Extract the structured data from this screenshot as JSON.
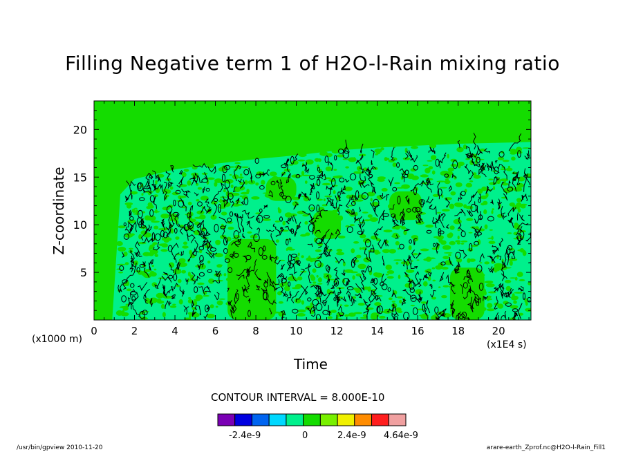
{
  "chart_data": {
    "type": "heatmap",
    "title": "Filling Negative term 1 of H2O-l-Rain mixing ratio",
    "xlabel": "Time",
    "ylabel": "Z-coordinate",
    "x_unit_note": "(x1000 m)",
    "x_scale_note": "(x1E4 s)",
    "xlim": [
      0,
      21.6
    ],
    "ylim": [
      0,
      23
    ],
    "x_ticks": [
      "0",
      "2",
      "4",
      "6",
      "8",
      "10",
      "12",
      "14",
      "16",
      "18",
      "20"
    ],
    "y_ticks": [
      "5",
      "10",
      "15",
      "20"
    ],
    "contour_interval_label": "CONTOUR INTERVAL = 8.000E-10",
    "colorbar_labels": [
      "-2.4e-9",
      "0",
      "2.4e-9",
      "4.64e-9"
    ],
    "colorbar_colors": [
      "#7a00b4",
      "#0000e0",
      "#0064f0",
      "#00d8ff",
      "#00f08c",
      "#14dc00",
      "#78f000",
      "#f0f000",
      "#ff8c00",
      "#ff1e1e",
      "#f0a0a0"
    ],
    "background_color": "#14dc00",
    "active_color": "#00f08c",
    "contour_color": "#000000",
    "active_region_top_profile": [
      [
        0.9,
        0
      ],
      [
        1.3,
        13.2
      ],
      [
        2,
        14.8
      ],
      [
        4,
        15.8
      ],
      [
        6,
        16.4
      ],
      [
        8,
        16.9
      ],
      [
        10,
        17.3
      ],
      [
        12,
        17.8
      ],
      [
        14,
        18.1
      ],
      [
        16,
        18.3
      ],
      [
        18,
        18.5
      ],
      [
        20,
        18.6
      ],
      [
        21.6,
        18.7
      ]
    ],
    "quiet_patches": [
      {
        "x": [
          6.6,
          9.0
        ],
        "y": [
          0,
          8.5
        ]
      },
      {
        "x": [
          17.6,
          19.3
        ],
        "y": [
          0,
          5.5
        ]
      },
      {
        "x": [
          10.8,
          12.2
        ],
        "y": [
          8.5,
          11.5
        ]
      },
      {
        "x": [
          14.6,
          16.2
        ],
        "y": [
          10.5,
          13.5
        ]
      },
      {
        "x": [
          8.5,
          10.0
        ],
        "y": [
          12.5,
          15.0
        ]
      }
    ]
  },
  "footer": {
    "left": "/usr/bin/gpview  2010-11-20",
    "right": "arare-earth_Zprof.nc@H2O-l-Rain_Fill1"
  }
}
